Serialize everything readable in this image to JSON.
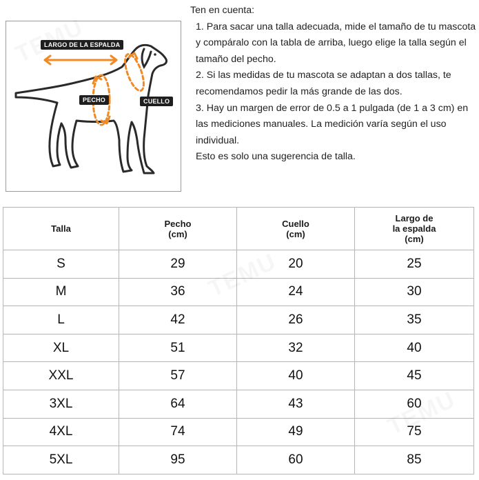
{
  "diagram": {
    "back_label": "LARGO DE LA ESPALDA",
    "chest_label": "PECHO",
    "neck_label": "CUELLO",
    "accent_color": "#f08a24"
  },
  "notes": {
    "heading": "Ten en cuenta:",
    "items": [
      "1. Para sacar una talla adecuada, mide el tamaño de tu mascota y compáralo con la tabla de arriba, luego elige la talla según el tamaño del pecho.",
      "2. Si las medidas de tu mascota se adaptan a dos tallas, te recomendamos pedir la más grande de las dos.",
      "3. Hay un margen de error de 0.5 a 1 pulgada (de 1 a 3 cm) en las mediciones manuales. La medición varía según el uso individual.",
      "Esto es solo una sugerencia de talla."
    ]
  },
  "table": {
    "headers": [
      "Talla",
      "Pecho\n(cm)",
      "Cuello\n(cm)",
      "Largo de\nla espalda\n(cm)"
    ],
    "rows": [
      [
        "S",
        "29",
        "20",
        "25"
      ],
      [
        "M",
        "36",
        "24",
        "30"
      ],
      [
        "L",
        "42",
        "26",
        "35"
      ],
      [
        "XL",
        "51",
        "32",
        "40"
      ],
      [
        "XXL",
        "57",
        "40",
        "45"
      ],
      [
        "3XL",
        "64",
        "43",
        "60"
      ],
      [
        "4XL",
        "74",
        "49",
        "75"
      ],
      [
        "5XL",
        "95",
        "60",
        "85"
      ]
    ]
  },
  "watermark": "TEMU"
}
